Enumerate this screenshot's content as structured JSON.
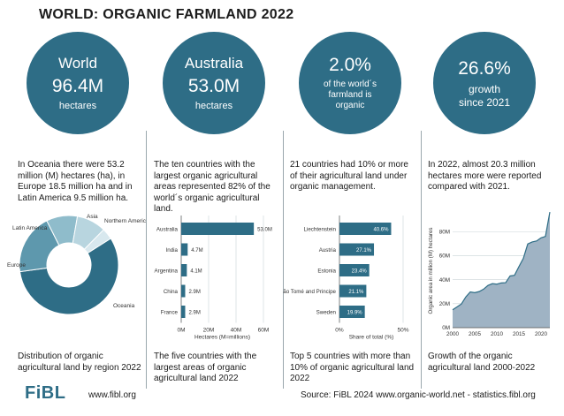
{
  "title": "WORLD: ORGANIC FARMLAND 2022",
  "circles": [
    {
      "l1": "World",
      "l2": "96.4M",
      "l3": "hectares"
    },
    {
      "l1": "Australia",
      "l2": "53.0M",
      "l3": "hectares"
    },
    {
      "l1": "2.0%",
      "l2": "of the world´s",
      "l3": "farmland is",
      "l4": "organic"
    },
    {
      "l1": "26.6%",
      "l2": "growth",
      "l3": "since 2021"
    }
  ],
  "descriptions": [
    "In Oceania there were 53.2 million (M) hectares (ha), in Europe 18.5 million ha and in Latin America 9.5 million ha.",
    "The ten countries with the largest organic agricultural areas represented 82% of the world´s organic agricultural land.",
    "21 countries had 10% or more of their agricultural land under organic management.",
    "In 2022, almost 20.3 million hectares more were reported compared with 2021."
  ],
  "captions": [
    "Distribution of organic agricultural land by region 2022",
    "The five countries with the largest areas of organic agricultural land 2022",
    "Top 5 countries with more than 10% of organic agricultural land 2022",
    "Growth of the organic agricultural land 2000-2022"
  ],
  "footer": {
    "logo": "FiBL",
    "url": "www.fibl.org",
    "source": "Source: FiBL 2024 www.organic-world.net - statistics.fibl.org"
  },
  "colors": {
    "dark_teal": "#2e6d86",
    "mid_teal": "#5e98ad",
    "light_teal": "#8fbccb",
    "pale_teal": "#b8d5df",
    "lightest": "#d8e8ee",
    "area_fill": "#9fb3c4",
    "area_line": "#2e6d86",
    "bar_fill": "#2e6d86"
  },
  "chart_data": [
    {
      "type": "pie",
      "labels": [
        "Oceania",
        "Europe",
        "Latin America",
        "Asia",
        "Northern America"
      ],
      "values": [
        53.2,
        18.5,
        9.5,
        9.0,
        3.4
      ],
      "donut": true
    },
    {
      "type": "bar",
      "orientation": "horizontal",
      "categories": [
        "Australia",
        "India",
        "Argentina",
        "China",
        "France"
      ],
      "values": [
        53.0,
        4.7,
        4.1,
        2.9,
        2.9
      ],
      "data_labels": [
        "53.0M",
        "4.7M",
        "4.1M",
        "2.9M",
        "2.9M"
      ],
      "xlabel": "Hectares (M=millions)",
      "xticks": [
        "0M",
        "20M",
        "40M",
        "60M"
      ],
      "xlim": [
        0,
        60
      ]
    },
    {
      "type": "bar",
      "orientation": "horizontal",
      "categories": [
        "Liechtenstein",
        "Austria",
        "Estonia",
        "São Tomé and Principe",
        "Sweden"
      ],
      "values": [
        40.6,
        27.1,
        23.4,
        21.1,
        19.9
      ],
      "data_labels": [
        "40.6%",
        "27.1%",
        "23.4%",
        "21.1%",
        "19.9%"
      ],
      "xlabel": "Share of total (%)",
      "xticks": [
        "0%",
        "50%"
      ],
      "xlim": [
        0,
        50
      ]
    },
    {
      "type": "area",
      "x": [
        2000,
        2001,
        2002,
        2003,
        2004,
        2005,
        2006,
        2007,
        2008,
        2009,
        2010,
        2011,
        2012,
        2013,
        2014,
        2015,
        2016,
        2017,
        2018,
        2019,
        2020,
        2021,
        2022
      ],
      "values": [
        14.9,
        17.3,
        19.8,
        25.7,
        29.8,
        29.2,
        30.1,
        32.1,
        35.2,
        36.7,
        36.3,
        37.3,
        37.5,
        43.1,
        43.7,
        50.9,
        57.8,
        69.8,
        71.5,
        72.3,
        74.9,
        76.1,
        96.4
      ],
      "ylabel": "Organic area in million (M) hectares",
      "yticks": [
        "0M",
        "20M",
        "40M",
        "60M",
        "80M"
      ],
      "xticks": [
        "2000",
        "2005",
        "2010",
        "2015",
        "2020"
      ],
      "ylim": [
        0,
        95
      ],
      "xlim": [
        2000,
        2022
      ],
      "grid": true
    }
  ]
}
